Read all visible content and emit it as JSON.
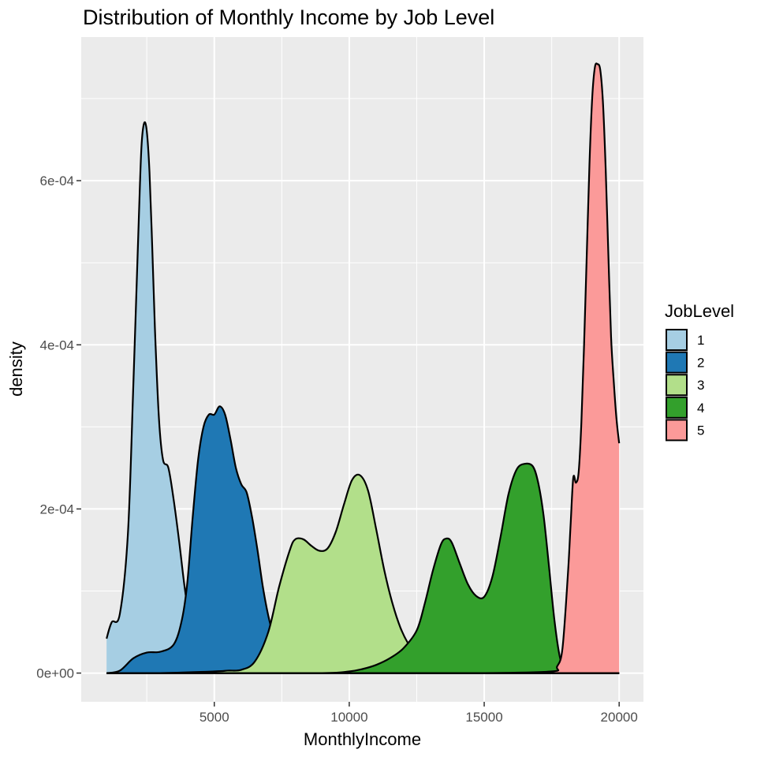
{
  "chart_data": {
    "type": "area",
    "title": "Distribution of Monthly Income by Job Level",
    "xlabel": "MonthlyIncome",
    "ylabel": "density",
    "xlim": [
      70,
      20900
    ],
    "ylim": [
      -3.5e-05,
      0.000775
    ],
    "x_ticks": [
      5000,
      10000,
      15000,
      20000
    ],
    "x_tick_labels": [
      "5000",
      "10000",
      "15000",
      "20000"
    ],
    "y_ticks": [
      0,
      0.0002,
      0.0004,
      0.0006
    ],
    "y_tick_labels": [
      "0e+00",
      "2e-04",
      "4e-04",
      "6e-04"
    ],
    "grid": true,
    "legend": {
      "title": "JobLevel",
      "position": "right"
    },
    "series": [
      {
        "name": "1",
        "color": "#A6CEE3",
        "x": [
          1009,
          1200,
          1500,
          1800,
          2000,
          2200,
          2300,
          2400,
          2500,
          2600,
          2700,
          2800,
          2950,
          3100,
          3300,
          3500,
          3700,
          3900,
          4100,
          4300,
          4600,
          5000,
          6000,
          8000,
          10000,
          12000,
          14000,
          16000,
          18000,
          20000
        ],
        "y": [
          4.2e-05,
          6.2e-05,
          7.2e-05,
          0.00017,
          0.00035,
          0.00055,
          0.00064,
          0.00067,
          0.00066,
          0.00061,
          0.00052,
          0.00042,
          0.00031,
          0.00026,
          0.00025,
          0.00021,
          0.00016,
          0.000105,
          6.2e-05,
          3.5e-05,
          1.8e-05,
          8e-06,
          3e-06,
          1e-06,
          0,
          0,
          0,
          0,
          0,
          0
        ]
      },
      {
        "name": "2",
        "color": "#1F78B4",
        "x": [
          1009,
          1500,
          2000,
          2500,
          3000,
          3500,
          3800,
          4000,
          4200,
          4400,
          4600,
          4800,
          5000,
          5200,
          5400,
          5600,
          5800,
          6000,
          6200,
          6400,
          6600,
          6800,
          7000,
          7200,
          7400,
          7600,
          8000,
          9000,
          10000,
          12000,
          14000,
          16000,
          18000,
          20000
        ],
        "y": [
          0,
          3e-06,
          1.8e-05,
          2.5e-05,
          2.6e-05,
          3.5e-05,
          6.5e-05,
          0.00011,
          0.00019,
          0.00026,
          0.0003,
          0.000315,
          0.000315,
          0.000325,
          0.000315,
          0.000285,
          0.00025,
          0.00023,
          0.00022,
          0.00019,
          0.00015,
          0.000105,
          7e-05,
          4.5e-05,
          2.8e-05,
          1.7e-05,
          8e-06,
          2e-06,
          1e-06,
          0,
          0,
          0,
          0,
          0
        ]
      },
      {
        "name": "3",
        "color": "#B2DF8A",
        "x": [
          1009,
          3000,
          5000,
          5500,
          6000,
          6500,
          7000,
          7400,
          7800,
          8000,
          8300,
          8600,
          8900,
          9200,
          9500,
          9800,
          10100,
          10400,
          10700,
          11000,
          11300,
          11600,
          11900,
          12200,
          12500,
          12800,
          13100,
          13500,
          14000,
          15000,
          16000,
          17000,
          18000,
          20000
        ],
        "y": [
          0,
          0,
          2e-06,
          3e-06,
          4e-06,
          1.4e-05,
          5e-05,
          0.000105,
          0.00015,
          0.000163,
          0.000163,
          0.000155,
          0.000149,
          0.000152,
          0.000172,
          0.000205,
          0.000235,
          0.000241,
          0.000222,
          0.000175,
          0.000125,
          8.5e-05,
          5.5e-05,
          3.5e-05,
          2.2e-05,
          1.3e-05,
          8e-06,
          4e-06,
          2e-06,
          0,
          0,
          0,
          0,
          0
        ]
      },
      {
        "name": "4",
        "color": "#33A02C",
        "x": [
          1009,
          5000,
          9000,
          10000,
          10500,
          11000,
          11500,
          12000,
          12500,
          12800,
          13100,
          13400,
          13600,
          13800,
          14100,
          14400,
          14700,
          15000,
          15300,
          15600,
          15900,
          16200,
          16500,
          16800,
          17000,
          17200,
          17400,
          17600,
          17800,
          18000,
          18200,
          18500,
          19000,
          20000
        ],
        "y": [
          0,
          0,
          0,
          2e-06,
          5e-06,
          1e-05,
          1.8e-05,
          3e-05,
          5.2e-05,
          8.5e-05,
          0.000125,
          0.000157,
          0.000164,
          0.000159,
          0.000133,
          0.000108,
          9.4e-05,
          9.3e-05,
          0.000117,
          0.000165,
          0.000218,
          0.000248,
          0.000255,
          0.000252,
          0.000232,
          0.000192,
          0.00013,
          6.5e-05,
          2e-05,
          4e-06,
          1e-06,
          0,
          0,
          0
        ]
      },
      {
        "name": "5",
        "color": "#FB9A99",
        "x": [
          1009,
          10000,
          15000,
          17500,
          17700,
          17900,
          18100,
          18200,
          18300,
          18400,
          18500,
          18600,
          18700,
          18800,
          18900,
          19000,
          19100,
          19200,
          19300,
          19400,
          19500,
          19600,
          19700,
          19800,
          19900,
          20000
        ],
        "y": [
          0,
          0,
          0,
          2e-06,
          8e-06,
          3e-05,
          0.00012,
          0.00018,
          0.000238,
          0.000232,
          0.000245,
          0.000305,
          0.0004,
          0.00051,
          0.00062,
          0.0007,
          0.000738,
          0.000742,
          0.000735,
          0.000695,
          0.000615,
          0.00051,
          0.00041,
          0.000355,
          0.00031,
          0.00028
        ]
      }
    ]
  }
}
